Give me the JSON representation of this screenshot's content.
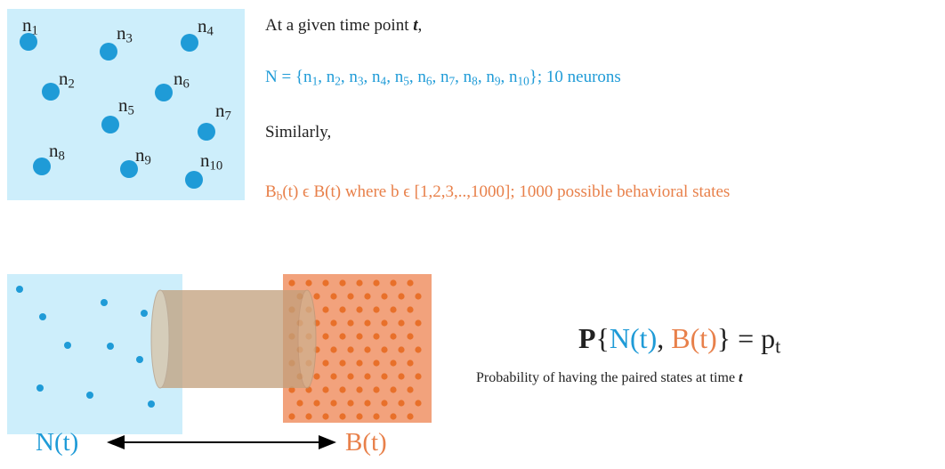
{
  "neurons": [
    [
      {
        "t": "n"
      },
      {
        "s": "1"
      }
    ],
    [
      {
        "t": "n"
      },
      {
        "s": "2"
      }
    ],
    [
      {
        "t": "n"
      },
      {
        "s": "3"
      }
    ],
    [
      {
        "t": "n"
      },
      {
        "s": "4"
      }
    ],
    [
      {
        "t": "n"
      },
      {
        "s": "5"
      }
    ],
    [
      {
        "t": "n"
      },
      {
        "s": "6"
      }
    ],
    [
      {
        "t": "n"
      },
      {
        "s": "7"
      }
    ],
    [
      {
        "t": "n"
      },
      {
        "s": "8"
      }
    ],
    [
      {
        "t": "n"
      },
      {
        "s": "9"
      }
    ],
    [
      {
        "t": "n"
      },
      {
        "s": "10"
      }
    ]
  ],
  "intro": [
    {
      "t": "At a given time point "
    },
    {
      "t": "t",
      "bold": true,
      "italic": true
    },
    {
      "t": ","
    }
  ],
  "neuron_set": {
    "color": "#1f9bd7",
    "segments": [
      {
        "t": "N = {n"
      },
      {
        "s": "1"
      },
      {
        "t": ", n"
      },
      {
        "s": "2"
      },
      {
        "t": ", n"
      },
      {
        "s": "3"
      },
      {
        "t": ", n"
      },
      {
        "s": "4"
      },
      {
        "t": ", n"
      },
      {
        "s": "5"
      },
      {
        "t": ", n"
      },
      {
        "s": "6"
      },
      {
        "t": ", n"
      },
      {
        "s": "7"
      },
      {
        "t": ", n"
      },
      {
        "s": "8"
      },
      {
        "t": ", n"
      },
      {
        "s": "9"
      },
      {
        "t": ", n"
      },
      {
        "s": "10"
      },
      {
        "t": "}; 10 neurons"
      }
    ]
  },
  "similarly": [
    {
      "t": "Similarly,"
    }
  ],
  "behavior_set": {
    "color": "#e8804a",
    "segments": [
      {
        "t": "B"
      },
      {
        "s": "b"
      },
      {
        "t": "(t) ϵ B(t) where b ϵ [1,2,3,..,1000]; 1000 possible behavioral states"
      }
    ]
  },
  "formula": [
    {
      "t": "P",
      "bold": true
    },
    {
      "t": "{"
    },
    {
      "t": "N(t)",
      "color": "#1f9bd7"
    },
    {
      "t": ", "
    },
    {
      "t": "B(t)",
      "color": "#e8804a"
    },
    {
      "t": "} = p"
    },
    {
      "s": "t"
    }
  ],
  "caption": [
    {
      "t": "Probability of having the paired states at time "
    },
    {
      "t": "t",
      "bold": true,
      "italic": true
    }
  ],
  "neural_label": [
    {
      "t": "N(t)"
    }
  ],
  "behavior_label": [
    {
      "t": "B(t)"
    }
  ]
}
